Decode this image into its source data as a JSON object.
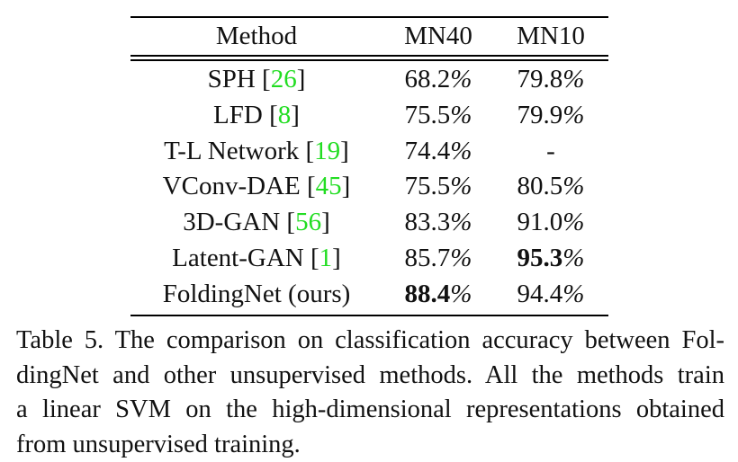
{
  "table": {
    "header": [
      "Method",
      "MN40",
      "MN10"
    ],
    "rows": [
      {
        "method": "SPH",
        "ref": "[26]",
        "mn40": "68.2%",
        "mn10": "79.8%",
        "best": null
      },
      {
        "method": "LFD",
        "ref": "[8]",
        "mn40": "75.5%",
        "mn10": "79.9%",
        "best": null
      },
      {
        "method": "T-L Network",
        "ref": "[19]",
        "mn40": "74.4%",
        "mn10": "-",
        "best": null
      },
      {
        "method": "VConv-DAE",
        "ref": "[45]",
        "mn40": "75.5%",
        "mn10": "80.5%",
        "best": null
      },
      {
        "method": "3D-GAN",
        "ref": "[56]",
        "mn40": "83.3%",
        "mn10": "91.0%",
        "best": null
      },
      {
        "method": "Latent-GAN",
        "ref": "[1]",
        "mn40": "85.7%",
        "mn10": "95.3%",
        "best": "mn10"
      },
      {
        "method": "FoldingNet (ours)",
        "ref": null,
        "mn40": "88.4%",
        "mn10": "94.4%",
        "best": "mn40"
      }
    ]
  },
  "caption": {
    "lines": [
      "Table 5. The comparison on classification accuracy between Fol-",
      "dingNet and other unsupervised methods.  All the methods train",
      "a linear SVM on the high-dimensional representations obtained",
      "from unsupervised training."
    ]
  }
}
